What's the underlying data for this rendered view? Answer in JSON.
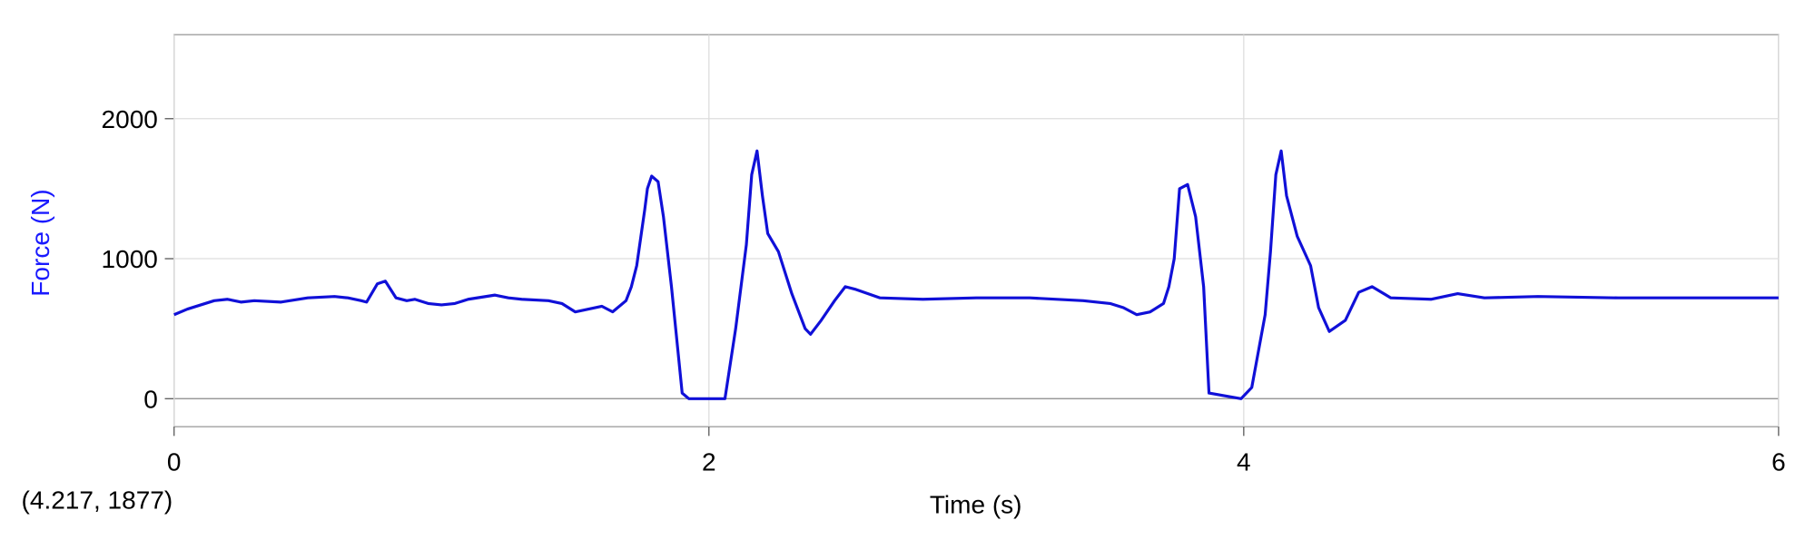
{
  "chart_data": {
    "type": "line",
    "y_label": "Force (N)",
    "x_label": "Time (s)",
    "annotation": "(4.217, 1877)",
    "xlim": [
      0,
      6
    ],
    "ylim": [
      -200,
      2600
    ],
    "xticks": [
      0,
      2,
      4,
      6
    ],
    "yticks": [
      0,
      1000,
      2000
    ],
    "grid": true,
    "x": [
      0,
      0.05,
      0.1,
      0.15,
      0.2,
      0.25,
      0.3,
      0.4,
      0.5,
      0.6,
      0.65,
      0.7,
      0.72,
      0.76,
      0.79,
      0.83,
      0.87,
      0.9,
      0.95,
      1.0,
      1.05,
      1.1,
      1.2,
      1.25,
      1.3,
      1.4,
      1.45,
      1.5,
      1.55,
      1.6,
      1.64,
      1.69,
      1.71,
      1.73,
      1.76,
      1.77,
      1.786,
      1.81,
      1.83,
      1.86,
      1.9,
      1.925,
      2.06,
      2.1,
      2.14,
      2.16,
      2.18,
      2.2,
      2.22,
      2.26,
      2.31,
      2.36,
      2.38,
      2.42,
      2.47,
      2.51,
      2.55,
      2.64,
      2.8,
      3.0,
      3.2,
      3.4,
      3.5,
      3.55,
      3.6,
      3.65,
      3.7,
      3.72,
      3.74,
      3.76,
      3.79,
      3.82,
      3.85,
      3.87,
      3.99,
      4.03,
      4.08,
      4.1,
      4.12,
      4.14,
      4.16,
      4.2,
      4.25,
      4.28,
      4.32,
      4.38,
      4.43,
      4.48,
      4.55,
      4.7,
      4.8,
      4.9,
      5.1,
      5.4,
      5.7,
      6.0
    ],
    "series": [
      {
        "name": "Force",
        "color": "#1010d8",
        "values": [
          600,
          640,
          670,
          700,
          710,
          690,
          700,
          690,
          720,
          730,
          720,
          700,
          690,
          820,
          840,
          720,
          700,
          710,
          680,
          670,
          680,
          710,
          740,
          720,
          710,
          700,
          680,
          620,
          640,
          660,
          620,
          700,
          800,
          950,
          1350,
          1500,
          1590,
          1550,
          1300,
          800,
          40,
          0,
          0,
          500,
          1100,
          1600,
          1770,
          1450,
          1180,
          1050,
          750,
          500,
          460,
          560,
          700,
          800,
          780,
          720,
          710,
          720,
          720,
          700,
          680,
          650,
          600,
          620,
          680,
          800,
          1000,
          1500,
          1530,
          1300,
          800,
          40,
          0,
          80,
          600,
          1050,
          1600,
          1770,
          1450,
          1160,
          950,
          650,
          480,
          560,
          760,
          800,
          720,
          710,
          750,
          720,
          730,
          720,
          720,
          720
        ]
      }
    ]
  }
}
